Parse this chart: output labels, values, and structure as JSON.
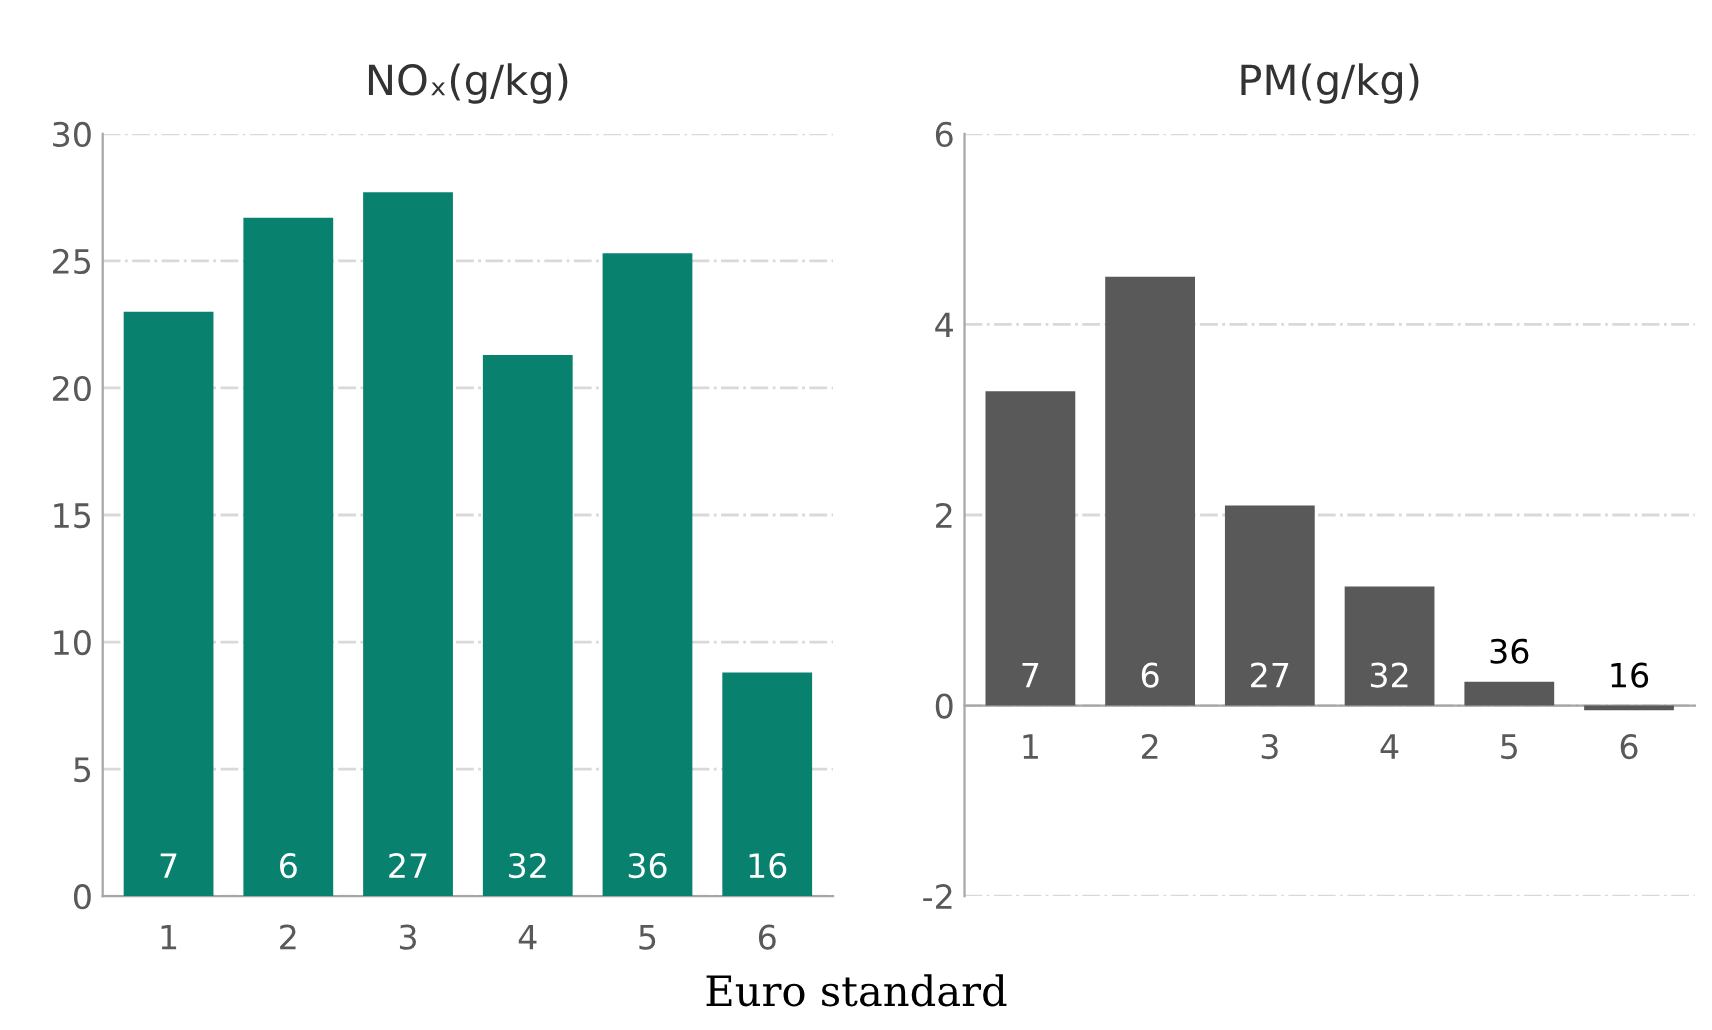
{
  "chart_data": [
    {
      "type": "bar",
      "title": "NOₓ(g/kg)",
      "xlabel": "Euro standard",
      "categories": [
        "1",
        "2",
        "3",
        "4",
        "5",
        "6"
      ],
      "values": [
        23.0,
        26.7,
        27.7,
        21.3,
        25.3,
        8.8
      ],
      "color": "#08826e",
      "annotations": [
        {
          "text": "7",
          "x": "1",
          "y": 0
        },
        {
          "text": "6",
          "x": "2",
          "y": 0
        },
        {
          "text": "27",
          "x": "3",
          "y": 0
        },
        {
          "text": "32",
          "x": "4",
          "y": 0
        },
        {
          "text": "36",
          "x": "5",
          "y": 0
        },
        {
          "text": "16",
          "x": "6",
          "y": 0
        }
      ],
      "ylim": [
        0,
        30
      ],
      "yticks": [
        0,
        5,
        10,
        15,
        20,
        25,
        30
      ],
      "grid": "y"
    },
    {
      "type": "bar",
      "title": "PM(g/kg)",
      "categories": [
        "1",
        "2",
        "3",
        "4",
        "5",
        "6"
      ],
      "values": [
        3.3,
        4.5,
        2.1,
        1.25,
        0.25,
        -0.05
      ],
      "color": "#595959",
      "annotations": [
        {
          "text": "7",
          "x": "1",
          "y": 0
        },
        {
          "text": "6",
          "x": "2",
          "y": 0
        },
        {
          "text": "27",
          "x": "3",
          "y": 0
        },
        {
          "text": "32",
          "x": "4",
          "y": 0
        },
        {
          "text": "36",
          "x": "5",
          "y": 0.25
        },
        {
          "text": "16",
          "x": "6",
          "y": -0.05
        }
      ],
      "ylim": [
        -2,
        6
      ],
      "yticks": [
        -2,
        0,
        2,
        4,
        6
      ],
      "grid": "y"
    }
  ]
}
